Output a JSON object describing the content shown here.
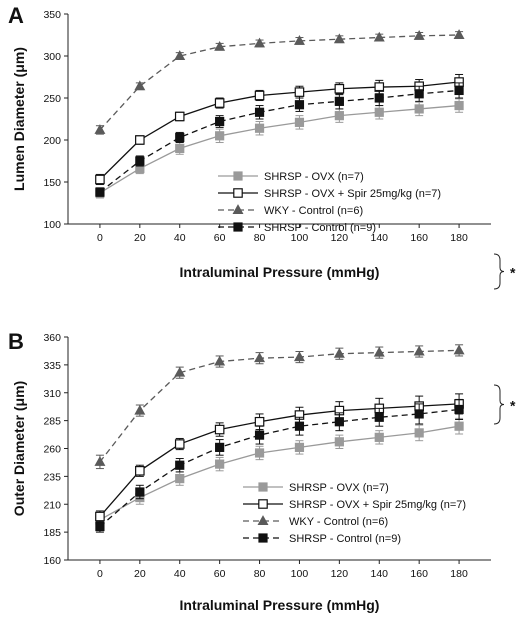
{
  "chart_data": [
    {
      "type": "line",
      "panel_label": "A",
      "ylabel": "Lumen Diameter (μm)",
      "xlabel": "Intraluminal Pressure (mmHg)",
      "x": [
        0,
        20,
        40,
        60,
        80,
        100,
        120,
        140,
        160,
        180
      ],
      "x_ticks": [
        "0",
        "20",
        "40",
        "60",
        "80",
        "100",
        "120",
        "140",
        "160",
        "180"
      ],
      "ylim": [
        100,
        350
      ],
      "y_ticks": [
        "100",
        "150",
        "200",
        "250",
        "300",
        "350"
      ],
      "significance_marker": "*",
      "series": [
        {
          "name": "SHRSP - OVX (n=7)",
          "color": "#9a9a9a",
          "marker": "square-filled",
          "line": "solid",
          "values": [
            137,
            166,
            190,
            205,
            214,
            221,
            229,
            233,
            237,
            241
          ],
          "errors": [
            6,
            6,
            7,
            8,
            8,
            8,
            8,
            8,
            8,
            8
          ]
        },
        {
          "name": "SHRSP - OVX + Spir 25mg/kg (n=7)",
          "color": "#111111",
          "marker": "square-open",
          "line": "solid",
          "values": [
            153,
            200,
            228,
            244,
            253,
            257,
            261,
            263,
            264,
            269
          ],
          "errors": [
            6,
            5,
            5,
            6,
            6,
            7,
            7,
            8,
            8,
            9
          ]
        },
        {
          "name": "WKY - Control (n=6)",
          "color": "#5a5a5a",
          "marker": "triangle-filled",
          "line": "dashed",
          "values": [
            212,
            264,
            300,
            311,
            315,
            318,
            320,
            322,
            324,
            325
          ],
          "errors": [
            5,
            4,
            4,
            4,
            4,
            4,
            4,
            4,
            4,
            4
          ]
        },
        {
          "name": "SHRSP - Control (n=9)",
          "color": "#111111",
          "marker": "square-filled",
          "line": "dashed",
          "values": [
            138,
            175,
            203,
            222,
            233,
            242,
            246,
            250,
            255,
            259
          ],
          "errors": [
            5,
            6,
            6,
            7,
            8,
            8,
            9,
            9,
            9,
            9
          ]
        }
      ]
    },
    {
      "type": "line",
      "panel_label": "B",
      "ylabel": "Outer Diameter (μm)",
      "xlabel": "Intraluminal Pressure (mmHg)",
      "x": [
        0,
        20,
        40,
        60,
        80,
        100,
        120,
        140,
        160,
        180
      ],
      "x_ticks": [
        "0",
        "20",
        "40",
        "60",
        "80",
        "100",
        "120",
        "140",
        "160",
        "180"
      ],
      "ylim": [
        160,
        360
      ],
      "y_ticks": [
        "160",
        "185",
        "210",
        "235",
        "260",
        "285",
        "310",
        "335",
        "360"
      ],
      "significance_marker": "*",
      "series": [
        {
          "name": "SHRSP - OVX (n=7)",
          "color": "#9a9a9a",
          "marker": "square-filled",
          "line": "solid",
          "values": [
            196,
            216,
            233,
            246,
            256,
            261,
            266,
            270,
            274,
            280
          ],
          "errors": [
            6,
            6,
            6,
            6,
            6,
            6,
            6,
            6,
            7,
            7
          ]
        },
        {
          "name": "SHRSP - OVX + Spir 25mg/kg (n=7)",
          "color": "#111111",
          "marker": "square-open",
          "line": "solid",
          "values": [
            199,
            240,
            264,
            277,
            284,
            290,
            294,
            296,
            298,
            300
          ],
          "errors": [
            5,
            5,
            5,
            6,
            7,
            7,
            8,
            9,
            9,
            9
          ]
        },
        {
          "name": "WKY - Control (n=6)",
          "color": "#5a5a5a",
          "marker": "triangle-filled",
          "line": "dashed",
          "values": [
            248,
            294,
            328,
            338,
            341,
            342,
            345,
            346,
            347,
            348
          ],
          "errors": [
            6,
            5,
            5,
            5,
            5,
            5,
            5,
            5,
            5,
            5
          ]
        },
        {
          "name": "SHRSP - Control (n=9)",
          "color": "#111111",
          "marker": "square-filled",
          "line": "dashed",
          "values": [
            190,
            221,
            245,
            261,
            272,
            280,
            284,
            288,
            291,
            295
          ],
          "errors": [
            5,
            6,
            6,
            7,
            8,
            8,
            8,
            8,
            9,
            9
          ]
        }
      ]
    }
  ]
}
